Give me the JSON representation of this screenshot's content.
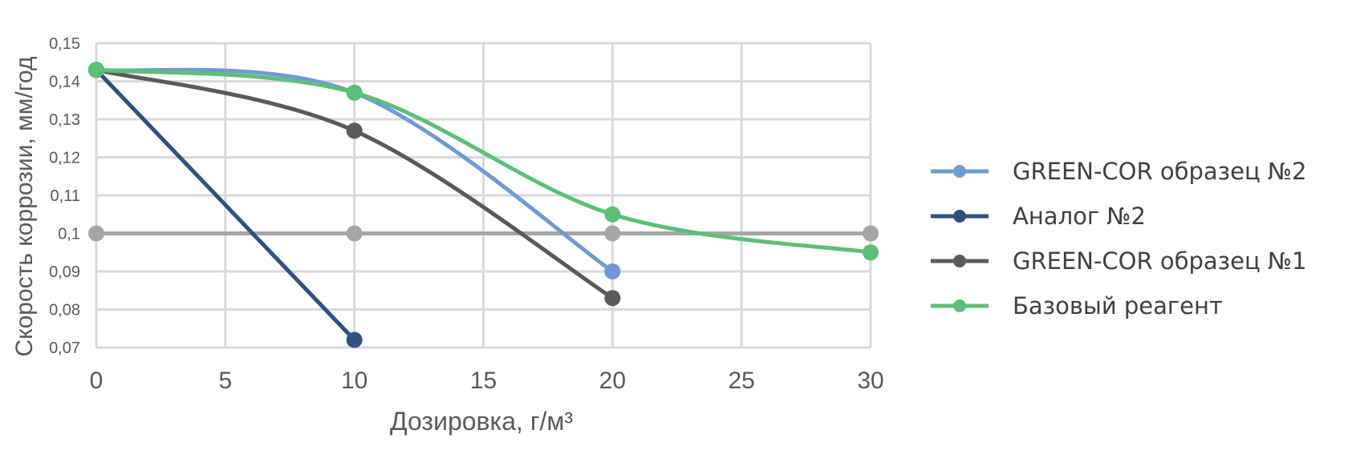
{
  "chart_data": {
    "type": "line",
    "xlabel": "Дозировка, г/м³",
    "ylabel": "Скорость коррозии, мм/год",
    "xlim": [
      0,
      30
    ],
    "ylim": [
      0.07,
      0.15
    ],
    "x_ticks": [
      "0",
      "5",
      "10",
      "15",
      "20",
      "25",
      "30"
    ],
    "y_ticks": [
      "0,07",
      "0,08",
      "0,09",
      "0,1",
      "0,11",
      "0,12",
      "0,13",
      "0,14",
      "0,15"
    ],
    "grid": true,
    "legend_position": "right",
    "series": [
      {
        "name": "GREEN-COR образец №2",
        "color": "#6f9ad3",
        "smooth": true,
        "points": [
          [
            0,
            0.143
          ],
          [
            10,
            0.137
          ],
          [
            20,
            0.09
          ]
        ]
      },
      {
        "name": "Аналог №2",
        "color": "#2e5180",
        "smooth": false,
        "points": [
          [
            0,
            0.143
          ],
          [
            10,
            0.072
          ]
        ]
      },
      {
        "name": "GREEN-COR образец №1",
        "color": "#5a5a5a",
        "smooth": true,
        "points": [
          [
            0,
            0.143
          ],
          [
            10,
            0.127
          ],
          [
            20,
            0.083
          ]
        ]
      },
      {
        "name": "Базовый реагент",
        "color": "#5cbf77",
        "smooth": true,
        "points": [
          [
            0,
            0.143
          ],
          [
            10,
            0.137
          ],
          [
            20,
            0.105
          ],
          [
            30,
            0.095
          ]
        ]
      }
    ],
    "reference_line": {
      "color": "#a6a6a6",
      "points": [
        [
          0,
          0.1
        ],
        [
          10,
          0.1
        ],
        [
          20,
          0.1
        ],
        [
          30,
          0.1
        ]
      ]
    }
  }
}
